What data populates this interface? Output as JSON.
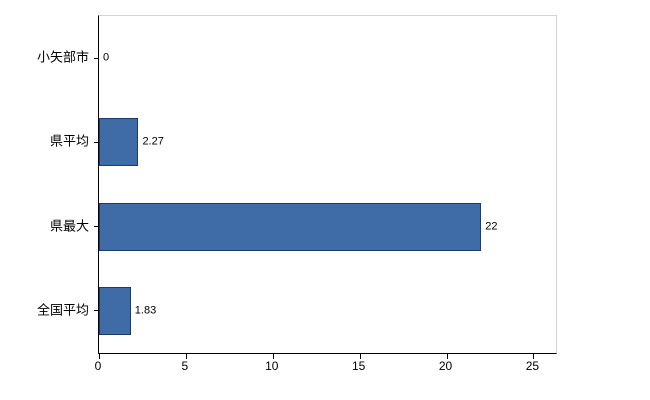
{
  "chart_data": {
    "type": "bar",
    "orientation": "horizontal",
    "title": "",
    "xlabel": "",
    "ylabel": "",
    "categories": [
      "小矢部市",
      "県平均",
      "県最大",
      "全国平均"
    ],
    "values": [
      0,
      2.27,
      22,
      1.83
    ],
    "value_labels": [
      "0",
      "2.27",
      "22",
      "1.83"
    ],
    "xticks": [
      0,
      5,
      10,
      15,
      20,
      25
    ],
    "xlim": [
      0,
      26.3
    ],
    "grid": false,
    "legend": false,
    "bar_color": "#3F6CA6",
    "bar_border_color": "#1A3C66",
    "plot_border_color": "#D3D3D3",
    "axis_color": "#000000",
    "background_color": "#FFFFFF"
  }
}
